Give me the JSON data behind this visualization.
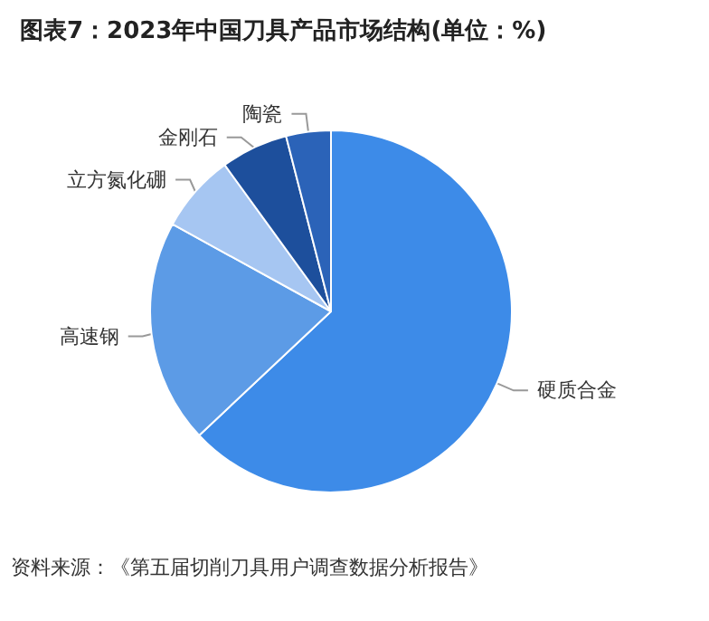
{
  "chart_data": {
    "type": "pie",
    "title": "图表7：2023年中国刀具产品市场结构(单位：%)",
    "categories": [
      "硬质合金",
      "高速钢",
      "立方氮化硼",
      "金刚石",
      "陶瓷"
    ],
    "values": [
      63,
      20,
      7,
      6,
      4
    ],
    "colors": [
      "#3d8be8",
      "#5c9be6",
      "#a6c6f2",
      "#1d4f9c",
      "#2b63b8"
    ],
    "legend": false,
    "annotations": [
      "资料来源：《第五届切削刀具用户调查数据分析报告》"
    ]
  }
}
